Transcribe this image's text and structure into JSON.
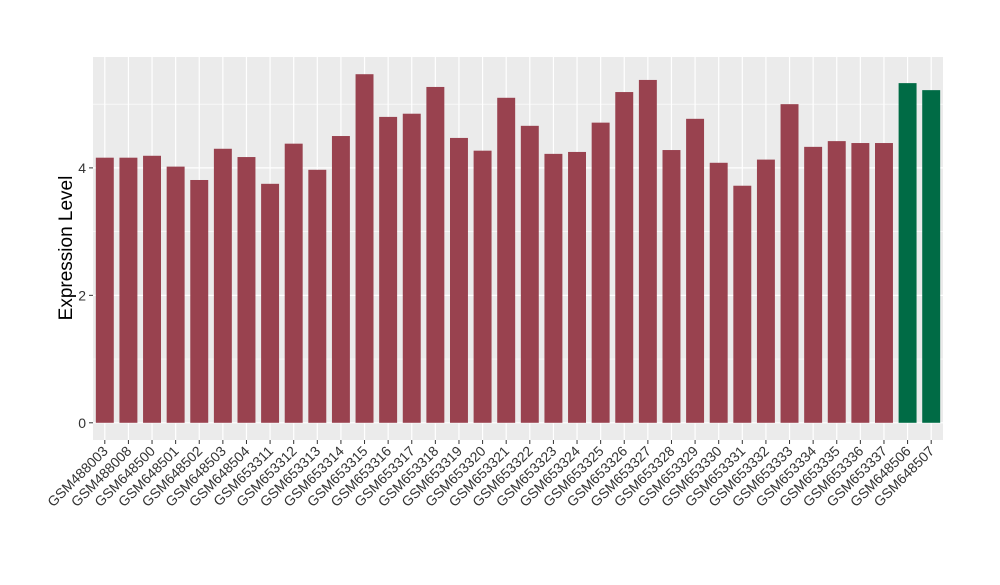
{
  "chart_data": {
    "type": "bar",
    "y_label": "Expression Level",
    "categories": [
      "GSM488003",
      "GSM488008",
      "GSM648500",
      "GSM648501",
      "GSM648502",
      "GSM648503",
      "GSM648504",
      "GSM653311",
      "GSM653312",
      "GSM653313",
      "GSM653314",
      "GSM653315",
      "GSM653316",
      "GSM653317",
      "GSM653318",
      "GSM653319",
      "GSM653320",
      "GSM653321",
      "GSM653322",
      "GSM653323",
      "GSM653324",
      "GSM653325",
      "GSM653326",
      "GSM653327",
      "GSM653328",
      "GSM653329",
      "GSM653330",
      "GSM653331",
      "GSM653332",
      "GSM653333",
      "GSM653334",
      "GSM653335",
      "GSM653336",
      "GSM653337",
      "GSM648506",
      "GSM648507"
    ],
    "values": [
      4.16,
      4.16,
      4.19,
      4.02,
      3.81,
      4.3,
      4.17,
      3.75,
      4.38,
      3.97,
      4.5,
      5.47,
      4.8,
      4.85,
      5.27,
      4.47,
      4.27,
      5.1,
      4.66,
      4.22,
      4.25,
      4.71,
      5.19,
      5.38,
      4.28,
      4.77,
      4.08,
      3.72,
      4.13,
      5.0,
      4.33,
      4.42,
      4.39,
      4.39,
      5.33,
      5.22
    ],
    "colors": [
      "#99424f",
      "#99424f",
      "#99424f",
      "#99424f",
      "#99424f",
      "#99424f",
      "#99424f",
      "#99424f",
      "#99424f",
      "#99424f",
      "#99424f",
      "#99424f",
      "#99424f",
      "#99424f",
      "#99424f",
      "#99424f",
      "#99424f",
      "#99424f",
      "#99424f",
      "#99424f",
      "#99424f",
      "#99424f",
      "#99424f",
      "#99424f",
      "#99424f",
      "#99424f",
      "#99424f",
      "#99424f",
      "#99424f",
      "#99424f",
      "#99424f",
      "#99424f",
      "#99424f",
      "#99424f",
      "#006b45",
      "#006b45"
    ],
    "ylim": [
      -0.27,
      5.74
    ],
    "yticks": [
      0,
      2,
      4
    ],
    "minor_yticks": [
      1,
      3,
      5
    ],
    "grid": true
  }
}
